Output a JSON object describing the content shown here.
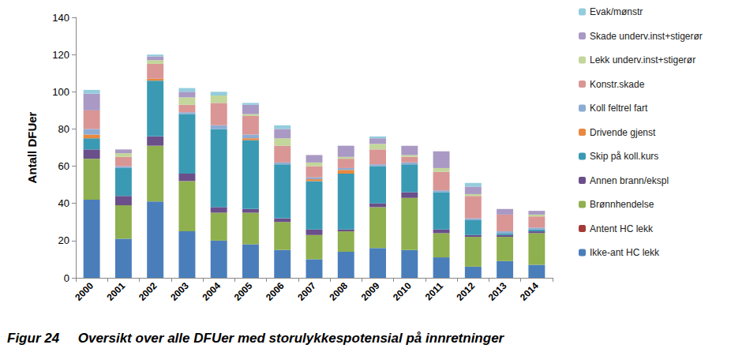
{
  "chart_data": {
    "type": "bar",
    "title": "Figur 24     Oversikt over alle DFUer med storulykkespotensial på innretninger",
    "y_label": "Antall DFUer",
    "categories": [
      "2000",
      "2001",
      "2002",
      "2003",
      "2004",
      "2005",
      "2006",
      "2007",
      "2008",
      "2009",
      "2010",
      "2011",
      "2012",
      "2013",
      "2014"
    ],
    "stacked": true,
    "legend": "right",
    "grid": false,
    "ylim": [
      0,
      140
    ],
    "yticks": [
      0,
      20,
      40,
      60,
      80,
      100,
      120,
      140
    ],
    "series": [
      {
        "name": "Ikke-ant HC lekk",
        "color": "#4a7ebb",
        "values": [
          42,
          21,
          41,
          25,
          20,
          18,
          15,
          10,
          14,
          16,
          15,
          11,
          6,
          9,
          7
        ]
      },
      {
        "name": "Antent HC lekk",
        "color": "#a33a36",
        "values": [
          0,
          0,
          0,
          0,
          0,
          0,
          0,
          0,
          0,
          0,
          0,
          0,
          0,
          0,
          0
        ]
      },
      {
        "name": "Brønnhendelse",
        "color": "#8fb04e",
        "values": [
          22,
          18,
          30,
          27,
          15,
          17,
          15,
          13,
          11,
          22,
          28,
          13,
          16,
          13,
          17
        ]
      },
      {
        "name": "Annen brann/ekspl",
        "color": "#6a4f8a",
        "values": [
          5,
          5,
          5,
          4,
          3,
          2,
          2,
          3,
          1,
          2,
          3,
          2,
          1,
          1,
          1
        ]
      },
      {
        "name": "Skip på koll.kurs",
        "color": "#3a9ab3",
        "values": [
          6,
          15,
          30,
          32,
          42,
          37,
          29,
          26,
          30,
          20,
          15,
          20,
          8,
          1,
          1
        ]
      },
      {
        "name": "Drivende gjenst",
        "color": "#e9883e",
        "values": [
          2,
          0,
          1,
          0,
          0,
          1,
          0,
          1,
          2,
          0,
          0,
          0,
          0,
          0,
          0
        ]
      },
      {
        "name": "Koll feltrel fart",
        "color": "#8eacd3",
        "values": [
          3,
          1,
          0,
          1,
          2,
          2,
          1,
          1,
          1,
          1,
          1,
          1,
          1,
          1,
          1
        ]
      },
      {
        "name": "Konstr.skade",
        "color": "#d99694",
        "values": [
          10,
          5,
          8,
          4,
          12,
          10,
          9,
          6,
          5,
          8,
          3,
          10,
          12,
          9,
          6
        ]
      },
      {
        "name": "Lekk underv.inst+stigerør",
        "color": "#c3d69b",
        "values": [
          0,
          2,
          2,
          4,
          4,
          1,
          4,
          2,
          1,
          3,
          1,
          2,
          1,
          0,
          1
        ]
      },
      {
        "name": "Skade underv.inst+stigerør",
        "color": "#a999c4",
        "values": [
          9,
          2,
          2,
          3,
          0,
          5,
          5,
          4,
          6,
          3,
          5,
          9,
          4,
          3,
          2
        ]
      },
      {
        "name": "Evak/mønstr",
        "color": "#93cddd",
        "values": [
          2,
          0,
          1,
          2,
          2,
          1,
          2,
          0,
          0,
          1,
          0,
          0,
          2,
          0,
          0
        ]
      }
    ]
  }
}
